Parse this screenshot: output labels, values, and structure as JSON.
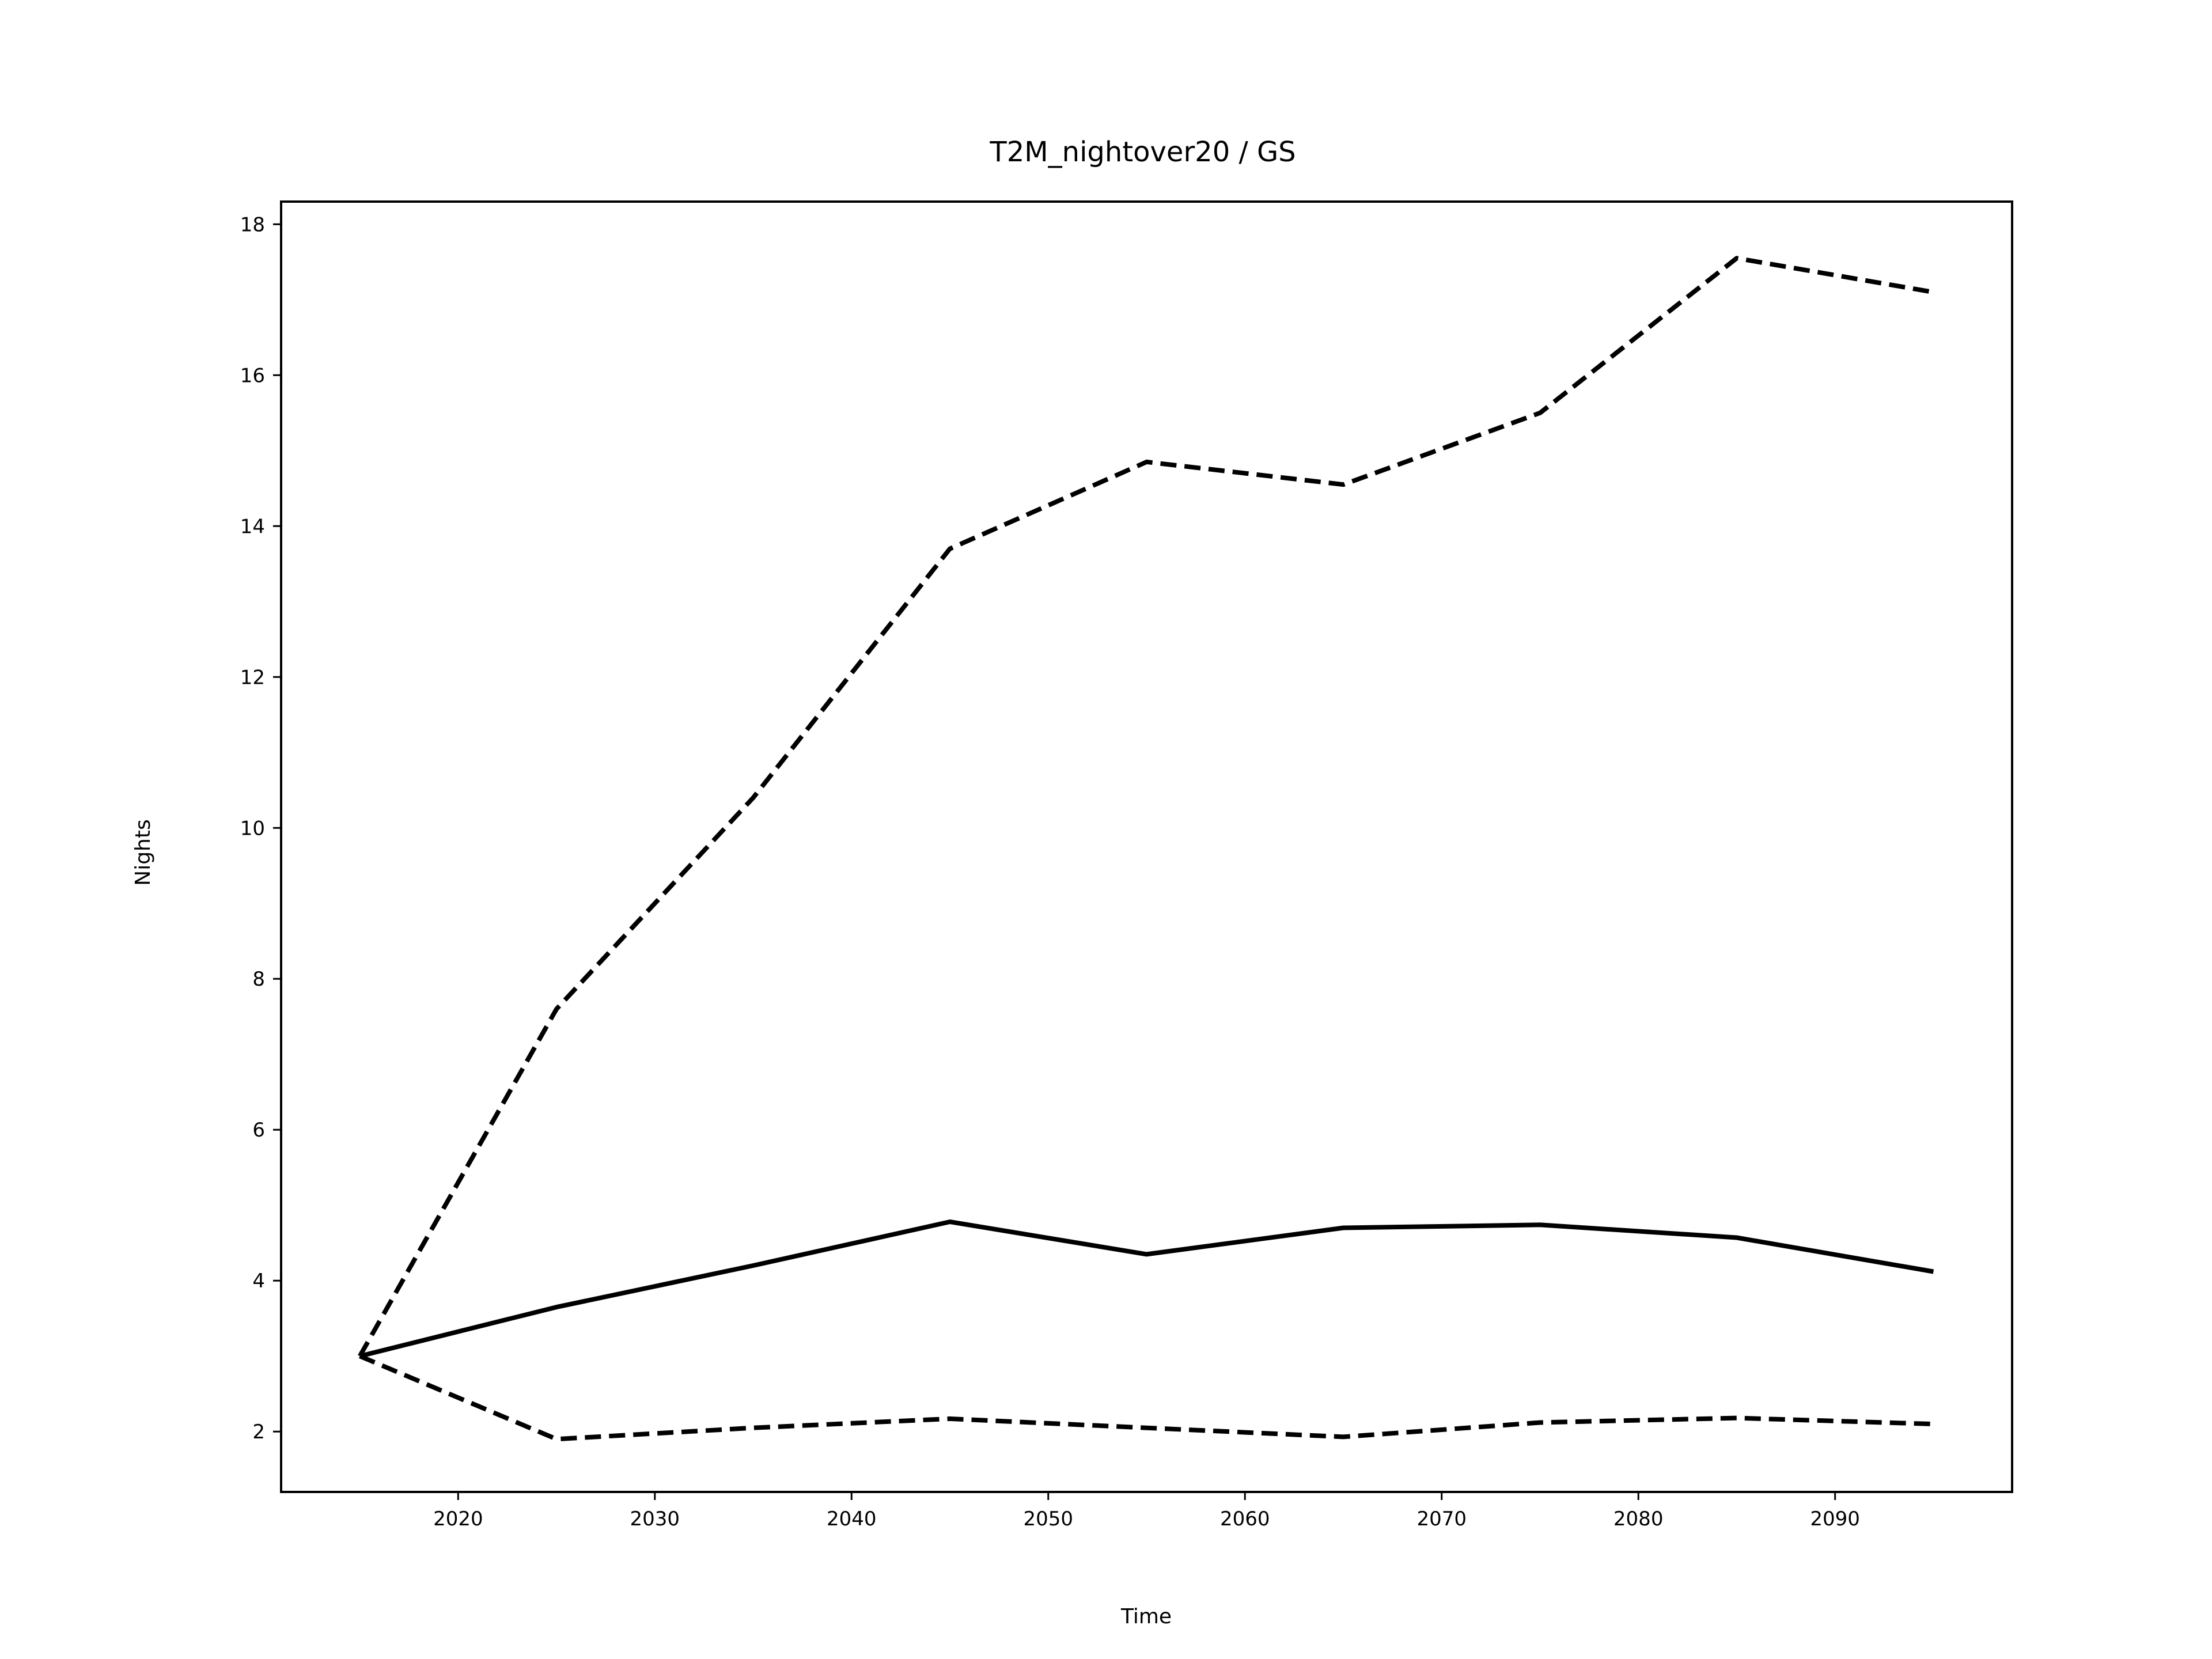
{
  "chart_data": {
    "type": "line",
    "title": "T2M_nightover20 / GS",
    "xlabel": "Time",
    "ylabel": "Nights",
    "xlim": [
      2011,
      2099
    ],
    "ylim": [
      1.2,
      18.3
    ],
    "x_ticks": [
      2020,
      2030,
      2040,
      2050,
      2060,
      2070,
      2080,
      2090
    ],
    "y_ticks": [
      2,
      4,
      6,
      8,
      10,
      12,
      14,
      16,
      18
    ],
    "x_tick_labels": [
      "2020",
      "2030",
      "2040",
      "2050",
      "2060",
      "2070",
      "2080",
      "2090"
    ],
    "y_tick_labels": [
      "2",
      "4",
      "6",
      "8",
      "10",
      "12",
      "14",
      "16",
      "18"
    ],
    "grid": false,
    "legend": "none",
    "x": [
      2015,
      2025,
      2035,
      2045,
      2055,
      2065,
      2075,
      2085,
      2095
    ],
    "series": [
      {
        "style": "solid",
        "color": "#000000",
        "values": [
          3.0,
          3.65,
          4.2,
          4.78,
          4.35,
          4.7,
          4.74,
          4.57,
          4.12
        ]
      },
      {
        "style": "dashed",
        "color": "#000000",
        "values": [
          3.0,
          7.6,
          10.4,
          13.7,
          14.85,
          14.55,
          15.5,
          17.55,
          17.1
        ]
      },
      {
        "style": "dashed",
        "color": "#000000",
        "values": [
          3.0,
          1.9,
          2.05,
          2.17,
          2.05,
          1.93,
          2.12,
          2.18,
          2.1
        ]
      }
    ]
  }
}
